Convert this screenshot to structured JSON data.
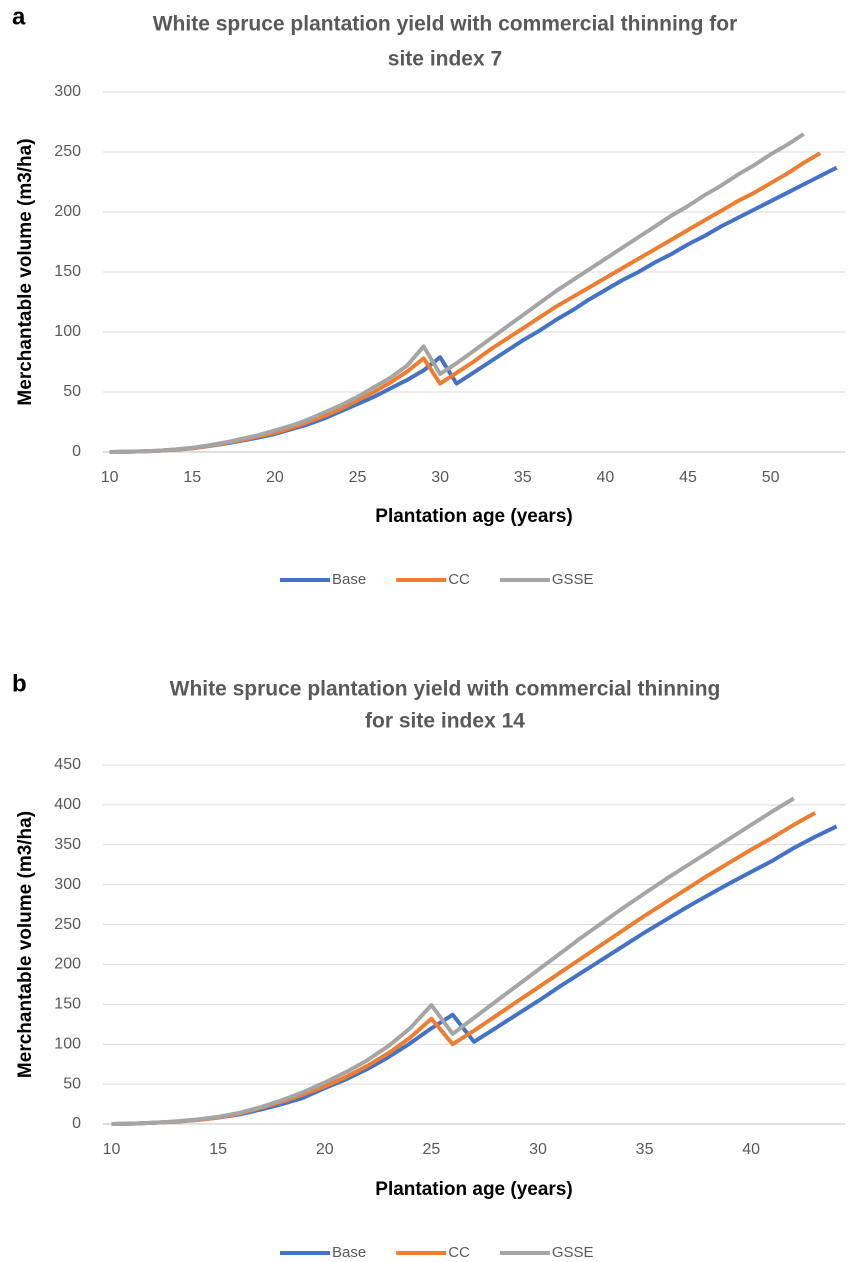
{
  "chart_data": [
    {
      "type": "line",
      "panel_label": "a",
      "title": [
        "White spruce plantation yield with commercial thinning for",
        "site index 7"
      ],
      "x_label": "Plantation age (years)",
      "y_label": "Merchantable volume (m3/ha)",
      "x": [
        10,
        11,
        12,
        13,
        14,
        15,
        16,
        17,
        18,
        19,
        20,
        21,
        22,
        23,
        24,
        25,
        26,
        27,
        28,
        29,
        30,
        31,
        32,
        33,
        34,
        35,
        36,
        37,
        38,
        39,
        40,
        41,
        42,
        43,
        44,
        45,
        46,
        47,
        48,
        49,
        50,
        51,
        52,
        53,
        54
      ],
      "series": [
        {
          "name": "Base",
          "color": "#4472c4",
          "values": [
            0,
            0.2,
            0.5,
            1,
            2,
            3,
            5,
            7,
            9.5,
            12,
            15,
            19,
            23,
            28,
            34,
            40,
            46,
            53,
            60,
            68,
            79,
            57,
            66,
            75,
            84,
            93,
            101,
            110,
            118,
            127,
            135,
            143,
            150,
            158,
            165,
            173,
            180,
            188,
            195,
            202,
            209,
            216,
            223,
            230,
            237
          ]
        },
        {
          "name": "CC",
          "color": "#ed7d31",
          "values": [
            0,
            0.2,
            0.5,
            1.1,
            2,
            3.2,
            5,
            7.5,
            10,
            13,
            16,
            20,
            25,
            30,
            36,
            43,
            50,
            58,
            67,
            78,
            57,
            66,
            75,
            85,
            94,
            103,
            112,
            121,
            129,
            137,
            145,
            153,
            161,
            169,
            177,
            185,
            193,
            201,
            209,
            216,
            224,
            232,
            241,
            249,
            null
          ]
        },
        {
          "name": "GSSE",
          "color": "#a5a5a5",
          "values": [
            0,
            0.2,
            0.6,
            1.2,
            2.2,
            3.5,
            5.5,
            8,
            11,
            14,
            18,
            22,
            27,
            33,
            39,
            46,
            54,
            62,
            72,
            88,
            65,
            74,
            84,
            94,
            104,
            114,
            124,
            134,
            143,
            152,
            161,
            170,
            179,
            188,
            197,
            205,
            214,
            222,
            231,
            239,
            248,
            256,
            265,
            null,
            null
          ]
        }
      ],
      "xlim": [
        9.6,
        54.5
      ],
      "xticks": [
        10,
        15,
        20,
        25,
        30,
        35,
        40,
        45,
        50
      ],
      "ylim": [
        0,
        300
      ],
      "yticks": [
        0,
        50,
        100,
        150,
        200,
        250,
        300
      ],
      "grid": true,
      "legend": "bottom"
    },
    {
      "type": "line",
      "panel_label": "b",
      "title": [
        "White spruce plantation yield with commercial thinning",
        "for site index 14"
      ],
      "x_label": "Plantation age (years)",
      "y_label": "Merchantable volume (m3/ha)",
      "x": [
        10,
        11,
        12,
        13,
        14,
        15,
        16,
        17,
        18,
        19,
        20,
        21,
        22,
        23,
        24,
        25,
        26,
        27,
        28,
        29,
        30,
        31,
        32,
        33,
        34,
        35,
        36,
        37,
        38,
        39,
        40,
        41,
        42,
        43,
        44
      ],
      "series": [
        {
          "name": "Base",
          "color": "#4472c4",
          "values": [
            0,
            0.5,
            1.5,
            3,
            5,
            8,
            12,
            18,
            25,
            33,
            45,
            56,
            69,
            84,
            101,
            120,
            137,
            103,
            120,
            137,
            154,
            172,
            189,
            206,
            223,
            240,
            256,
            272,
            287,
            302,
            316,
            330,
            346,
            360,
            373
          ]
        },
        {
          "name": "CC",
          "color": "#ed7d31",
          "values": [
            0,
            0.5,
            1.5,
            3,
            5,
            8.2,
            13,
            20,
            28,
            37,
            47,
            59,
            73,
            89,
            108,
            132,
            100,
            117,
            135,
            153,
            171,
            189,
            207,
            225,
            243,
            261,
            278,
            295,
            312,
            328,
            344,
            359,
            375,
            390,
            null
          ]
        },
        {
          "name": "GSSE",
          "color": "#a5a5a5",
          "values": [
            0,
            0.5,
            1.6,
            3.2,
            5.7,
            9,
            14,
            21,
            30,
            40,
            52,
            65,
            80,
            98,
            120,
            149,
            113,
            133,
            153,
            173,
            193,
            213,
            233,
            252,
            271,
            289,
            307,
            324,
            341,
            358,
            375,
            392,
            408,
            null,
            null
          ]
        }
      ],
      "xlim": [
        9.6,
        44.4
      ],
      "xticks": [
        10,
        15,
        20,
        25,
        30,
        35,
        40
      ],
      "ylim": [
        0,
        450
      ],
      "yticks": [
        0,
        50,
        100,
        150,
        200,
        250,
        300,
        350,
        400,
        450
      ],
      "grid": true,
      "legend": "bottom"
    }
  ]
}
